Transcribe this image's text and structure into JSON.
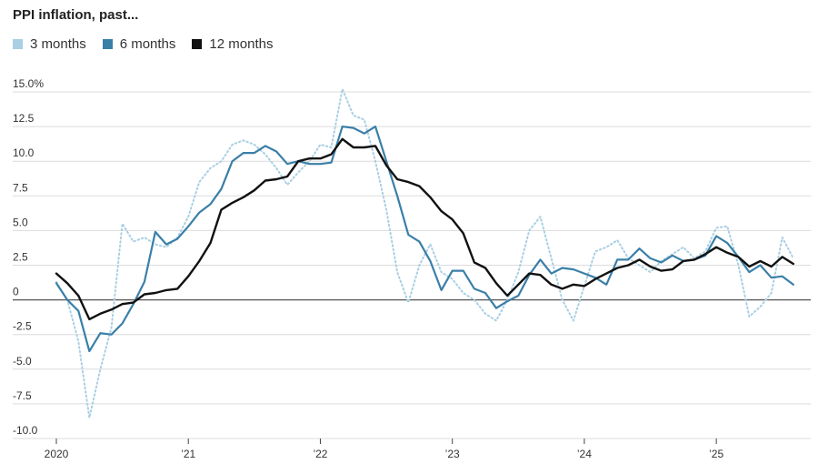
{
  "chart_data": {
    "type": "line",
    "title": "PPI inflation, past...",
    "xlabel": "",
    "ylabel": "",
    "ylim": [
      -10,
      15
    ],
    "y_ticks": [
      15,
      12.5,
      10,
      7.5,
      5,
      2.5,
      0,
      -2.5,
      -5,
      -7.5,
      -10
    ],
    "y_tick_labels": [
      "15.0%",
      "12.5",
      "10.0",
      "7.5",
      "5.0",
      "2.5",
      "0",
      "-2.5",
      "-5.0",
      "-7.5",
      "-10.0"
    ],
    "x_ticks": [
      2020,
      2021,
      2022,
      2023,
      2024,
      2025
    ],
    "x_tick_labels": [
      "2020",
      "’21",
      "’22",
      "’23",
      "’24",
      "’25"
    ],
    "xlim": [
      2020.0,
      2025.667
    ],
    "grid": true,
    "legend_position": "top-left",
    "series": [
      {
        "name": "3 months",
        "color": "#a9cfe3",
        "style": "dotted",
        "x": [
          2020.0,
          2020.083,
          2020.167,
          2020.25,
          2020.333,
          2020.417,
          2020.5,
          2020.583,
          2020.667,
          2020.75,
          2020.833,
          2020.917,
          2021.0,
          2021.083,
          2021.167,
          2021.25,
          2021.333,
          2021.417,
          2021.5,
          2021.583,
          2021.667,
          2021.75,
          2021.833,
          2021.917,
          2022.0,
          2022.083,
          2022.167,
          2022.25,
          2022.333,
          2022.417,
          2022.5,
          2022.583,
          2022.667,
          2022.75,
          2022.833,
          2022.917,
          2023.0,
          2023.083,
          2023.167,
          2023.25,
          2023.333,
          2023.417,
          2023.5,
          2023.583,
          2023.667,
          2023.75,
          2023.833,
          2023.917,
          2024.0,
          2024.083,
          2024.167,
          2024.25,
          2024.333,
          2024.417,
          2024.5,
          2024.583,
          2024.667,
          2024.75,
          2024.833,
          2024.917,
          2025.0,
          2025.083,
          2025.167,
          2025.25,
          2025.333,
          2025.417,
          2025.5,
          2025.583
        ],
        "values": [
          1.3,
          0.0,
          -3.0,
          -8.5,
          -5.0,
          -2.0,
          5.5,
          4.2,
          4.5,
          4.0,
          3.8,
          4.5,
          6.0,
          8.5,
          9.5,
          10.0,
          11.2,
          11.5,
          11.2,
          10.5,
          9.5,
          8.3,
          9.2,
          10.0,
          11.2,
          11.0,
          15.2,
          13.3,
          13.0,
          10.0,
          6.5,
          2.0,
          -0.2,
          2.5,
          4.0,
          2.0,
          1.5,
          0.5,
          0.0,
          -1.0,
          -1.5,
          0.0,
          2.0,
          5.0,
          6.0,
          3.0,
          0.0,
          -1.5,
          1.0,
          3.5,
          3.8,
          4.3,
          3.0,
          2.5,
          2.0,
          2.8,
          3.3,
          3.8,
          3.0,
          3.5,
          5.2,
          5.3,
          2.5,
          -1.2,
          -0.5,
          0.5,
          4.5,
          3.0
        ]
      },
      {
        "name": "6 months",
        "color": "#3a7fa8",
        "style": "solid",
        "x": [
          2020.0,
          2020.083,
          2020.167,
          2020.25,
          2020.333,
          2020.417,
          2020.5,
          2020.583,
          2020.667,
          2020.75,
          2020.833,
          2020.917,
          2021.0,
          2021.083,
          2021.167,
          2021.25,
          2021.333,
          2021.417,
          2021.5,
          2021.583,
          2021.667,
          2021.75,
          2021.833,
          2021.917,
          2022.0,
          2022.083,
          2022.167,
          2022.25,
          2022.333,
          2022.417,
          2022.5,
          2022.583,
          2022.667,
          2022.75,
          2022.833,
          2022.917,
          2023.0,
          2023.083,
          2023.167,
          2023.25,
          2023.333,
          2023.417,
          2023.5,
          2023.583,
          2023.667,
          2023.75,
          2023.833,
          2023.917,
          2024.0,
          2024.083,
          2024.167,
          2024.25,
          2024.333,
          2024.417,
          2024.5,
          2024.583,
          2024.667,
          2024.75,
          2024.833,
          2024.917,
          2025.0,
          2025.083,
          2025.167,
          2025.25,
          2025.333,
          2025.417,
          2025.5,
          2025.583
        ],
        "values": [
          1.2,
          0.0,
          -0.8,
          -3.7,
          -2.4,
          -2.5,
          -1.7,
          -0.3,
          1.3,
          4.9,
          4.0,
          4.4,
          5.3,
          6.3,
          6.9,
          8.0,
          10.0,
          10.6,
          10.6,
          11.1,
          10.7,
          9.8,
          10.0,
          9.8,
          9.8,
          9.9,
          12.5,
          12.4,
          12.0,
          12.5,
          10.0,
          7.5,
          4.7,
          4.2,
          2.8,
          0.7,
          2.1,
          2.1,
          0.8,
          0.5,
          -0.6,
          -0.1,
          0.3,
          1.8,
          2.9,
          1.9,
          2.3,
          2.2,
          1.9,
          1.6,
          1.1,
          2.9,
          2.9,
          3.7,
          3.0,
          2.7,
          3.2,
          2.8,
          2.9,
          3.2,
          4.6,
          4.1,
          3.1,
          2.0,
          2.5,
          1.6,
          1.7,
          1.1
        ]
      },
      {
        "name": "12 months",
        "color": "#111111",
        "style": "solid",
        "x": [
          2020.0,
          2020.083,
          2020.167,
          2020.25,
          2020.333,
          2020.417,
          2020.5,
          2020.583,
          2020.667,
          2020.75,
          2020.833,
          2020.917,
          2021.0,
          2021.083,
          2021.167,
          2021.25,
          2021.333,
          2021.417,
          2021.5,
          2021.583,
          2021.667,
          2021.75,
          2021.833,
          2021.917,
          2022.0,
          2022.083,
          2022.167,
          2022.25,
          2022.333,
          2022.417,
          2022.5,
          2022.583,
          2022.667,
          2022.75,
          2022.833,
          2022.917,
          2023.0,
          2023.083,
          2023.167,
          2023.25,
          2023.333,
          2023.417,
          2023.5,
          2023.583,
          2023.667,
          2023.75,
          2023.833,
          2023.917,
          2024.0,
          2024.083,
          2024.167,
          2024.25,
          2024.333,
          2024.417,
          2024.5,
          2024.583,
          2024.667,
          2024.75,
          2024.833,
          2024.917,
          2025.0,
          2025.083,
          2025.167,
          2025.25,
          2025.333,
          2025.417,
          2025.5,
          2025.583
        ],
        "values": [
          1.9,
          1.2,
          0.3,
          -1.4,
          -1.0,
          -0.7,
          -0.3,
          -0.2,
          0.4,
          0.5,
          0.7,
          0.8,
          1.7,
          2.8,
          4.1,
          6.5,
          7.0,
          7.4,
          7.9,
          8.6,
          8.7,
          8.9,
          10.0,
          10.2,
          10.2,
          10.5,
          11.6,
          11.0,
          11.0,
          11.1,
          9.7,
          8.7,
          8.5,
          8.2,
          7.4,
          6.4,
          5.8,
          4.8,
          2.7,
          2.3,
          1.2,
          0.3,
          1.1,
          1.9,
          1.8,
          1.1,
          0.8,
          1.1,
          1.0,
          1.5,
          1.9,
          2.3,
          2.5,
          2.9,
          2.4,
          2.1,
          2.2,
          2.8,
          2.9,
          3.3,
          3.8,
          3.4,
          3.1,
          2.4,
          2.8,
          2.4,
          3.1,
          2.6
        ]
      }
    ]
  }
}
